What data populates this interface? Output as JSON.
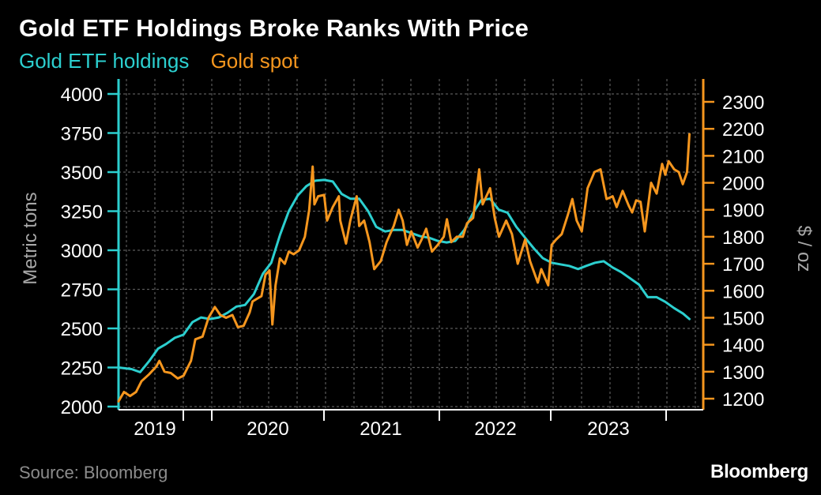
{
  "title": "Gold ETF Holdings Broke Ranks With Price",
  "source": "Source: Bloomberg",
  "brand": "Bloomberg",
  "colors": {
    "holdings": "#2ccfcf",
    "spot": "#f5961e",
    "grid": "#5a5a5a",
    "axis_title": "#a8a8a8"
  },
  "chart_data": {
    "type": "line",
    "title": "Gold ETF Holdings Broke Ranks With Price",
    "x_tick_labels": [
      "2019",
      "2020",
      "2021",
      "2022",
      "2023"
    ],
    "x_range": [
      "2018-10-01",
      "2024-03-15"
    ],
    "grid": true,
    "legend_placement": "top-left",
    "left_axis": {
      "label": "Metric tons",
      "ticks": [
        "4000",
        "3750",
        "3500",
        "3250",
        "3000",
        "2750",
        "2500",
        "2250",
        "2000"
      ],
      "range": [
        2000,
        4000
      ]
    },
    "right_axis": {
      "label": "$ / oz",
      "ticks": [
        "2300",
        "2200",
        "2100",
        "2000",
        "1900",
        "1800",
        "1700",
        "1600",
        "1500",
        "1400",
        "1300",
        "1200"
      ],
      "range": [
        1175,
        2345
      ]
    },
    "series": [
      {
        "name": "Gold ETF holdings",
        "axis": "left",
        "color": "#2ccfcf",
        "points": [
          [
            "2018-10-01",
            2250
          ],
          [
            "2018-11-15",
            2240
          ],
          [
            "2018-12-15",
            2220
          ],
          [
            "2019-01-15",
            2290
          ],
          [
            "2019-02-15",
            2370
          ],
          [
            "2019-03-15",
            2400
          ],
          [
            "2019-04-15",
            2440
          ],
          [
            "2019-05-15",
            2460
          ],
          [
            "2019-06-15",
            2540
          ],
          [
            "2019-07-15",
            2570
          ],
          [
            "2019-08-15",
            2560
          ],
          [
            "2019-09-15",
            2570
          ],
          [
            "2019-10-15",
            2600
          ],
          [
            "2019-11-15",
            2640
          ],
          [
            "2019-12-15",
            2650
          ],
          [
            "2020-01-15",
            2720
          ],
          [
            "2020-02-15",
            2850
          ],
          [
            "2020-03-15",
            2920
          ],
          [
            "2020-04-15",
            3100
          ],
          [
            "2020-05-15",
            3250
          ],
          [
            "2020-06-15",
            3350
          ],
          [
            "2020-07-15",
            3410
          ],
          [
            "2020-08-15",
            3445
          ],
          [
            "2020-09-15",
            3450
          ],
          [
            "2020-10-15",
            3440
          ],
          [
            "2020-11-15",
            3360
          ],
          [
            "2020-12-15",
            3330
          ],
          [
            "2021-01-15",
            3330
          ],
          [
            "2021-02-15",
            3250
          ],
          [
            "2021-03-15",
            3150
          ],
          [
            "2021-04-15",
            3120
          ],
          [
            "2021-05-15",
            3130
          ],
          [
            "2021-06-15",
            3130
          ],
          [
            "2021-07-15",
            3110
          ],
          [
            "2021-08-15",
            3090
          ],
          [
            "2021-09-15",
            3080
          ],
          [
            "2021-10-15",
            3060
          ],
          [
            "2021-11-15",
            3050
          ],
          [
            "2021-12-15",
            3060
          ],
          [
            "2022-01-15",
            3130
          ],
          [
            "2022-02-15",
            3240
          ],
          [
            "2022-03-15",
            3320
          ],
          [
            "2022-04-15",
            3330
          ],
          [
            "2022-05-15",
            3260
          ],
          [
            "2022-06-15",
            3240
          ],
          [
            "2022-07-15",
            3150
          ],
          [
            "2022-08-15",
            3080
          ],
          [
            "2022-09-15",
            3010
          ],
          [
            "2022-10-15",
            2950
          ],
          [
            "2022-11-15",
            2920
          ],
          [
            "2022-12-15",
            2910
          ],
          [
            "2023-01-15",
            2900
          ],
          [
            "2023-02-15",
            2880
          ],
          [
            "2023-03-15",
            2900
          ],
          [
            "2023-04-15",
            2920
          ],
          [
            "2023-05-15",
            2930
          ],
          [
            "2023-06-15",
            2890
          ],
          [
            "2023-07-15",
            2860
          ],
          [
            "2023-08-15",
            2820
          ],
          [
            "2023-09-15",
            2780
          ],
          [
            "2023-10-15",
            2700
          ],
          [
            "2023-11-15",
            2700
          ],
          [
            "2023-12-15",
            2670
          ],
          [
            "2024-01-15",
            2630
          ],
          [
            "2024-02-15",
            2595
          ],
          [
            "2024-03-08",
            2560
          ]
        ]
      },
      {
        "name": "Gold spot",
        "axis": "right",
        "color": "#f5961e",
        "points": [
          [
            "2018-10-01",
            1190
          ],
          [
            "2018-10-20",
            1225
          ],
          [
            "2018-11-10",
            1210
          ],
          [
            "2018-12-01",
            1225
          ],
          [
            "2018-12-20",
            1265
          ],
          [
            "2019-01-15",
            1290
          ],
          [
            "2019-02-10",
            1320
          ],
          [
            "2019-02-20",
            1340
          ],
          [
            "2019-03-10",
            1300
          ],
          [
            "2019-04-01",
            1295
          ],
          [
            "2019-04-25",
            1275
          ],
          [
            "2019-05-15",
            1285
          ],
          [
            "2019-06-10",
            1340
          ],
          [
            "2019-06-25",
            1420
          ],
          [
            "2019-07-20",
            1430
          ],
          [
            "2019-08-10",
            1500
          ],
          [
            "2019-09-01",
            1540
          ],
          [
            "2019-09-20",
            1510
          ],
          [
            "2019-10-10",
            1500
          ],
          [
            "2019-11-01",
            1510
          ],
          [
            "2019-11-20",
            1465
          ],
          [
            "2019-12-10",
            1470
          ],
          [
            "2019-12-31",
            1520
          ],
          [
            "2020-01-10",
            1560
          ],
          [
            "2020-01-25",
            1570
          ],
          [
            "2020-02-10",
            1580
          ],
          [
            "2020-02-24",
            1660
          ],
          [
            "2020-03-09",
            1675
          ],
          [
            "2020-03-19",
            1475
          ],
          [
            "2020-03-30",
            1620
          ],
          [
            "2020-04-14",
            1720
          ],
          [
            "2020-05-01",
            1700
          ],
          [
            "2020-05-15",
            1745
          ],
          [
            "2020-06-01",
            1735
          ],
          [
            "2020-06-20",
            1750
          ],
          [
            "2020-07-10",
            1800
          ],
          [
            "2020-07-25",
            1900
          ],
          [
            "2020-08-06",
            2060
          ],
          [
            "2020-08-12",
            1920
          ],
          [
            "2020-08-25",
            1950
          ],
          [
            "2020-09-15",
            1955
          ],
          [
            "2020-09-25",
            1860
          ],
          [
            "2020-10-15",
            1910
          ],
          [
            "2020-11-05",
            1950
          ],
          [
            "2020-11-10",
            1860
          ],
          [
            "2020-11-30",
            1775
          ],
          [
            "2020-12-15",
            1860
          ],
          [
            "2021-01-06",
            1950
          ],
          [
            "2021-01-15",
            1840
          ],
          [
            "2021-02-01",
            1860
          ],
          [
            "2021-02-20",
            1780
          ],
          [
            "2021-03-08",
            1680
          ],
          [
            "2021-03-31",
            1710
          ],
          [
            "2021-04-20",
            1780
          ],
          [
            "2021-05-15",
            1840
          ],
          [
            "2021-06-01",
            1900
          ],
          [
            "2021-06-15",
            1860
          ],
          [
            "2021-06-30",
            1770
          ],
          [
            "2021-07-15",
            1820
          ],
          [
            "2021-08-06",
            1760
          ],
          [
            "2021-08-20",
            1790
          ],
          [
            "2021-09-05",
            1830
          ],
          [
            "2021-09-25",
            1745
          ],
          [
            "2021-10-15",
            1770
          ],
          [
            "2021-11-05",
            1800
          ],
          [
            "2021-11-16",
            1865
          ],
          [
            "2021-12-01",
            1780
          ],
          [
            "2021-12-20",
            1800
          ],
          [
            "2022-01-10",
            1800
          ],
          [
            "2022-01-25",
            1850
          ],
          [
            "2022-02-15",
            1870
          ],
          [
            "2022-03-08",
            2050
          ],
          [
            "2022-03-20",
            1920
          ],
          [
            "2022-04-15",
            1980
          ],
          [
            "2022-05-01",
            1870
          ],
          [
            "2022-05-16",
            1800
          ],
          [
            "2022-06-10",
            1860
          ],
          [
            "2022-06-30",
            1810
          ],
          [
            "2022-07-20",
            1700
          ],
          [
            "2022-08-15",
            1790
          ],
          [
            "2022-09-01",
            1710
          ],
          [
            "2022-09-28",
            1630
          ],
          [
            "2022-10-10",
            1680
          ],
          [
            "2022-11-03",
            1620
          ],
          [
            "2022-11-15",
            1770
          ],
          [
            "2022-12-01",
            1790
          ],
          [
            "2022-12-20",
            1810
          ],
          [
            "2023-01-10",
            1880
          ],
          [
            "2023-01-26",
            1940
          ],
          [
            "2023-02-10",
            1860
          ],
          [
            "2023-02-28",
            1820
          ],
          [
            "2023-03-20",
            1980
          ],
          [
            "2023-04-13",
            2040
          ],
          [
            "2023-05-04",
            2050
          ],
          [
            "2023-05-25",
            1940
          ],
          [
            "2023-06-15",
            1950
          ],
          [
            "2023-06-29",
            1910
          ],
          [
            "2023-07-20",
            1970
          ],
          [
            "2023-08-10",
            1915
          ],
          [
            "2023-08-22",
            1890
          ],
          [
            "2023-09-05",
            1935
          ],
          [
            "2023-09-20",
            1930
          ],
          [
            "2023-10-05",
            1820
          ],
          [
            "2023-10-27",
            2000
          ],
          [
            "2023-11-15",
            1960
          ],
          [
            "2023-12-04",
            2070
          ],
          [
            "2023-12-15",
            2030
          ],
          [
            "2023-12-27",
            2080
          ],
          [
            "2024-01-15",
            2050
          ],
          [
            "2024-01-31",
            2040
          ],
          [
            "2024-02-14",
            1995
          ],
          [
            "2024-02-29",
            2040
          ],
          [
            "2024-03-05",
            2130
          ],
          [
            "2024-03-08",
            2180
          ]
        ]
      }
    ]
  }
}
